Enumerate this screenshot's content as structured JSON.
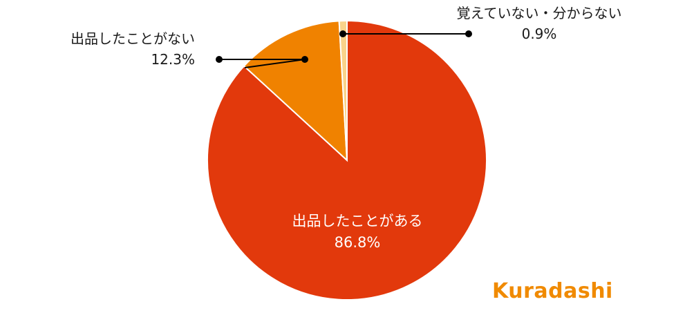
{
  "chart_data": {
    "type": "pie",
    "title": "",
    "start_angle_deg": 0,
    "direction": "clockwise",
    "slices": [
      {
        "label": "出品したことがある",
        "value": 86.8,
        "display": "86.8%",
        "color": "#e2390c",
        "label_position": "inside"
      },
      {
        "label": "出品したことがない",
        "value": 12.3,
        "display": "12.3%",
        "color": "#f08200",
        "label_position": "outside-left"
      },
      {
        "label": "覚えていない・分からない",
        "value": 0.9,
        "display": "0.9%",
        "color": "#f9d38a",
        "label_position": "outside-right"
      }
    ]
  },
  "brand": {
    "logo_text": "Kuradashi",
    "color": "#f08a00"
  }
}
